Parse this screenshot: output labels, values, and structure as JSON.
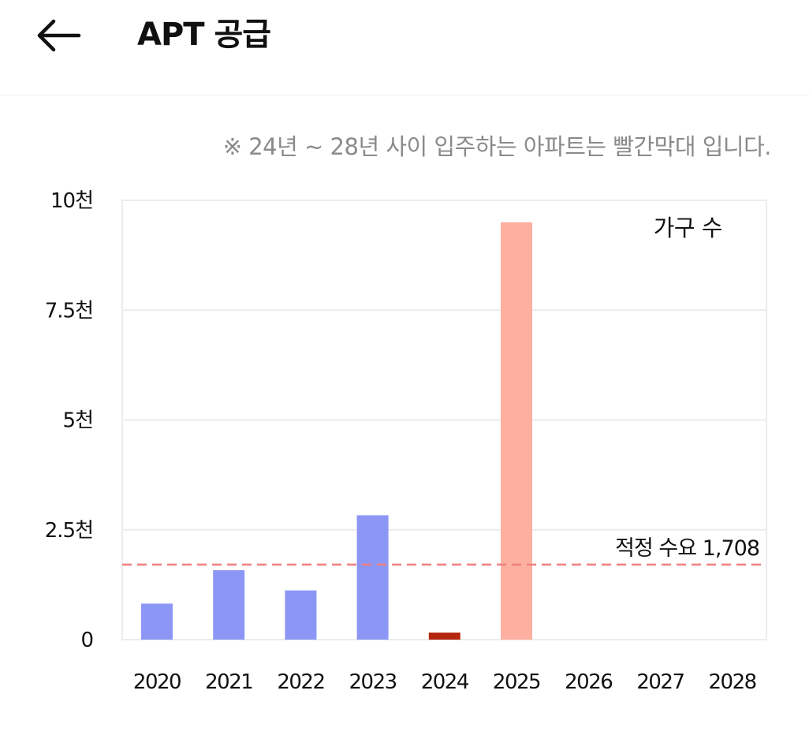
{
  "header": {
    "back_icon": "arrow-left-icon",
    "title": "APT 공급"
  },
  "note": "※ 24년 ~ 28년 사이 입주하는 아파트는 빨간막대 입니다.",
  "colors": {
    "past_bar": "#8c97f5",
    "current_bar": "#b5260f",
    "future_bar": "#fdb0a0",
    "reference_line": "#f08080",
    "grid": "#ececec"
  },
  "chart_data": {
    "type": "bar",
    "categories": [
      "2020",
      "2021",
      "2022",
      "2023",
      "2024",
      "2025",
      "2026",
      "2027",
      "2028"
    ],
    "values": [
      820,
      1580,
      1120,
      2830,
      160,
      9500,
      0,
      0,
      0
    ],
    "bar_kind": [
      "past",
      "past",
      "past",
      "past",
      "current",
      "future",
      "future",
      "future",
      "future"
    ],
    "legend": "가구 수",
    "legend_position": "top-right",
    "ylim": [
      0,
      10000
    ],
    "yticks": [
      0,
      2500,
      5000,
      7500,
      10000
    ],
    "ytick_labels": [
      "0",
      "2.5천",
      "5천",
      "7.5천",
      "10천"
    ],
    "reference_line": {
      "value": 1708,
      "label": "적정 수요 1,708",
      "style": "dashed"
    },
    "grid": true
  }
}
